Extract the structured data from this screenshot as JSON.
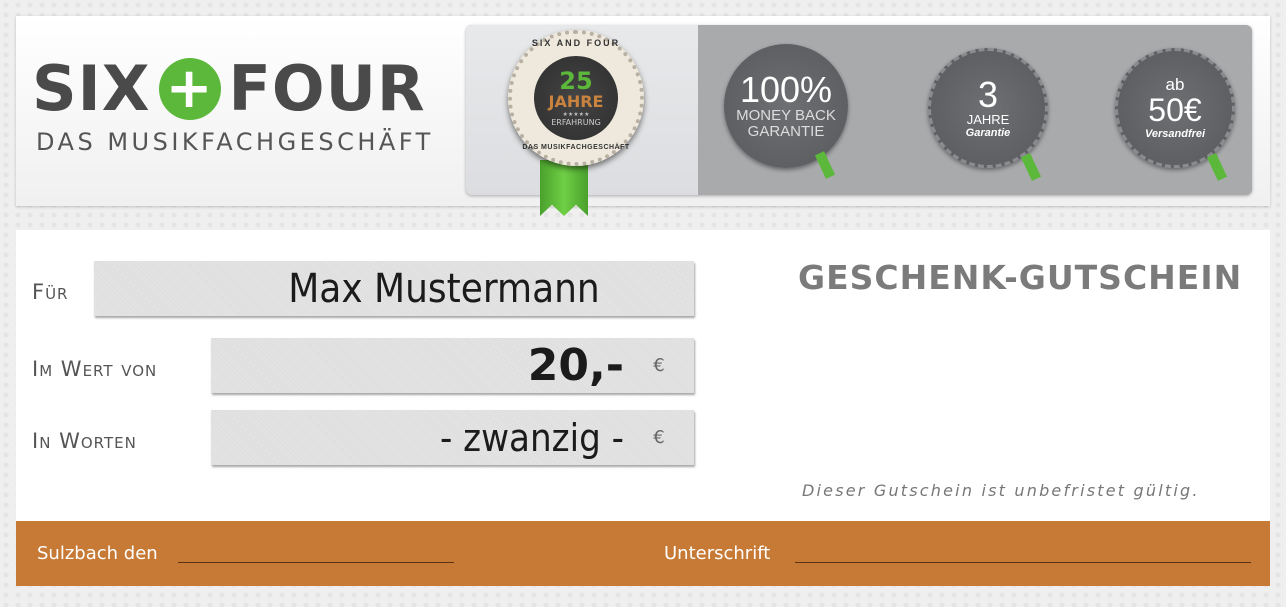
{
  "header": {
    "logo": {
      "left": "SIX",
      "plus": "+",
      "right": "FOUR",
      "subtitle": "DAS MUSIKFACHGESCHÄFT"
    },
    "seal": {
      "arc_top": "SIX AND FOUR",
      "number": "25",
      "unit": "JAHRE",
      "stars": "★★★★★",
      "experience": "ERFAHRUNG",
      "arc_bottom": "DAS MUSIKFACHGESCHÄFT"
    },
    "badges": [
      {
        "big": "100%",
        "line1": "MONEY BACK",
        "line2": "GARANTIE"
      },
      {
        "big": "3",
        "line1": "JAHRE",
        "line2": "Garantie"
      },
      {
        "top": "ab",
        "big": "50€",
        "line2": "Versandfrei"
      }
    ],
    "colors": {
      "green": "#5cb83a",
      "orange": "#c77a35",
      "gray": "#4a4a4a"
    }
  },
  "voucher": {
    "title": "GESCHENK-GUTSCHEIN",
    "fields": [
      {
        "label": "Für",
        "value": "Max Mustermann"
      },
      {
        "label": "Im Wert von",
        "value": "20,-",
        "currency": "€"
      },
      {
        "label": "In Worten",
        "value": "- zwanzig -",
        "currency": "€"
      }
    ],
    "note": "Dieser Gutschein ist unbefristet gültig."
  },
  "footer": {
    "place_label": "Sulzbach den",
    "signature_label": "Unterschrift"
  }
}
